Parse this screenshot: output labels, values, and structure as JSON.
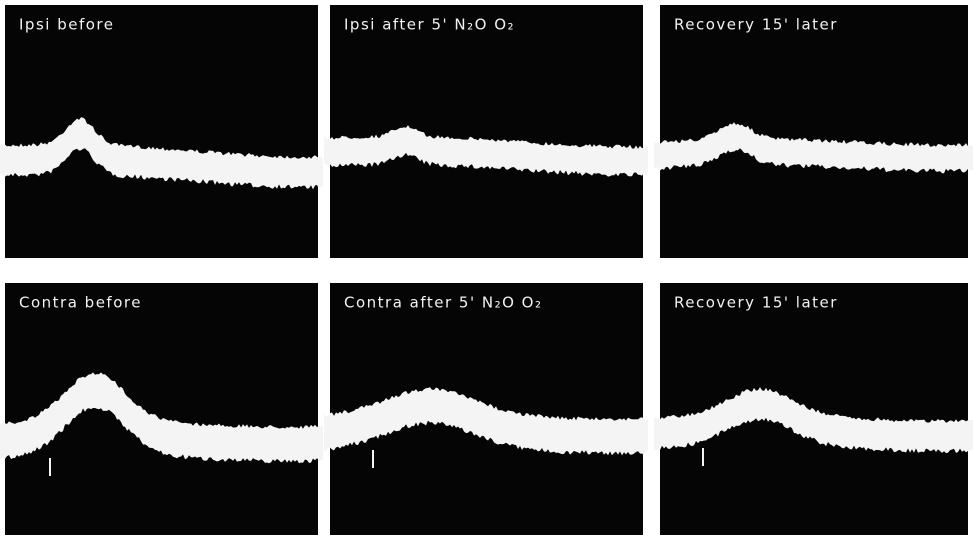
{
  "panels": [
    {
      "label": "Ipsi before"
    },
    {
      "label": "Ipsi after 5' N₂O O₂"
    },
    {
      "label": "Recovery 15' later"
    },
    {
      "label": "Contra before"
    },
    {
      "label": "Contra after 5' N₂O O₂"
    },
    {
      "label": "Recovery 15' later"
    }
  ]
}
